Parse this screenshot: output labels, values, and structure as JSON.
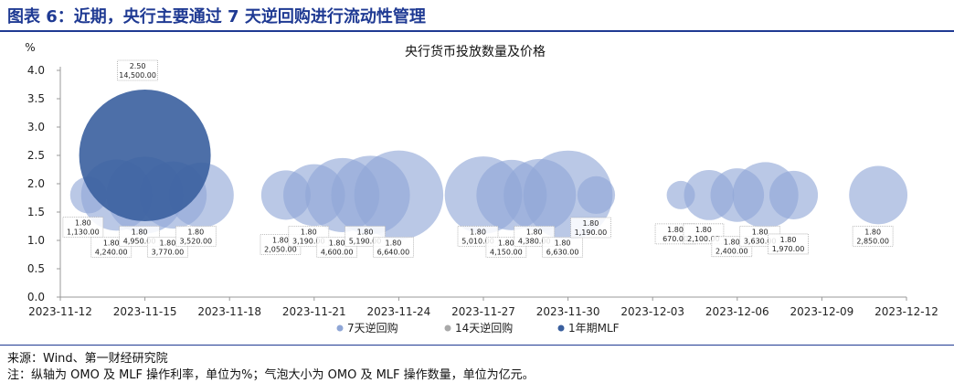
{
  "header": {
    "figure_title": "图表 6：近期，央行主要通过 7 天逆回购进行流动性管理"
  },
  "footer": {
    "source": "来源：Wind、第一财经研究院",
    "note": "注：纵轴为 OMO 及 MLF 操作利率，单位为%；气泡大小为 OMO 及 MLF 操作数量，单位为亿元。"
  },
  "colors": {
    "7d": "#8fa6d6",
    "14d": "#7f95c7",
    "mlf": "#3a5f9e",
    "axis": "#999999",
    "header": "#1f3a93"
  },
  "chart_data": {
    "type": "bubble",
    "title": "央行货币投放数量及价格",
    "y_unit_label": "%",
    "ylim": [
      0.0,
      4.0
    ],
    "y_ticks": [
      "0.0",
      "0.5",
      "1.0",
      "1.5",
      "2.0",
      "2.5",
      "3.0",
      "3.5",
      "4.0"
    ],
    "x_start": "2023-11-12",
    "x_end": "2023-12-12",
    "x_ticks": [
      "2023-11-12",
      "2023-11-15",
      "2023-11-18",
      "2023-11-21",
      "2023-11-24",
      "2023-11-27",
      "2023-11-30",
      "2023-12-03",
      "2023-12-06",
      "2023-12-09",
      "2023-12-12"
    ],
    "grid": false,
    "legend_position": "bottom",
    "series": [
      {
        "name": "7天逆回购",
        "color_key": "7d",
        "points": [
          {
            "date": "2023-11-13",
            "y": 1.8,
            "size": 1130,
            "label": "1.80\n1,130.00"
          },
          {
            "date": "2023-11-14",
            "y": 1.8,
            "size": 4240,
            "label": "1.80\n4,240.00"
          },
          {
            "date": "2023-11-15",
            "y": 1.8,
            "size": 4950,
            "label": "1.80\n4,950.00"
          },
          {
            "date": "2023-11-16",
            "y": 1.8,
            "size": 3770,
            "label": "1.80\n3,770.00"
          },
          {
            "date": "2023-11-17",
            "y": 1.8,
            "size": 3520,
            "label": "1.80\n3,520.00"
          },
          {
            "date": "2023-11-20",
            "y": 1.8,
            "size": 2050,
            "label": "1.80\n2,050.00"
          },
          {
            "date": "2023-11-21",
            "y": 1.8,
            "size": 3190,
            "label": "1.80\n3,190.00"
          },
          {
            "date": "2023-11-22",
            "y": 1.8,
            "size": 4600,
            "label": "1.80\n4,600.00"
          },
          {
            "date": "2023-11-23",
            "y": 1.8,
            "size": 5190,
            "label": "1.80\n5,190.00"
          },
          {
            "date": "2023-11-24",
            "y": 1.8,
            "size": 6640,
            "label": "1.80\n6,640.00"
          },
          {
            "date": "2023-11-27",
            "y": 1.8,
            "size": 5010,
            "label": "1.80\n5,010.00"
          },
          {
            "date": "2023-11-28",
            "y": 1.8,
            "size": 4150,
            "label": "1.80\n4,150.00"
          },
          {
            "date": "2023-11-29",
            "y": 1.8,
            "size": 4380,
            "label": "1.80\n4,380.00"
          },
          {
            "date": "2023-11-30",
            "y": 1.8,
            "size": 6630,
            "label": "1.80\n6,630.00"
          },
          {
            "date": "2023-12-01",
            "y": 1.8,
            "size": 1190,
            "label": "1.80\n1,190.00"
          },
          {
            "date": "2023-12-04",
            "y": 1.8,
            "size": 670,
            "label": "1.80\n670.00"
          },
          {
            "date": "2023-12-05",
            "y": 1.8,
            "size": 2100,
            "label": "1.80\n2,100.00"
          },
          {
            "date": "2023-12-06",
            "y": 1.8,
            "size": 2400,
            "label": "1.80\n2,400.00"
          },
          {
            "date": "2023-12-07",
            "y": 1.8,
            "size": 3630,
            "label": "1.80\n3,630.00"
          },
          {
            "date": "2023-12-08",
            "y": 1.8,
            "size": 1970,
            "label": "1.80\n1,970.00"
          },
          {
            "date": "2023-12-11",
            "y": 1.8,
            "size": 2850,
            "label": "1.80\n2,850.00"
          }
        ]
      },
      {
        "name": "14天逆回购",
        "color_key": "14d",
        "points": []
      },
      {
        "name": "1年期MLF",
        "color_key": "mlf",
        "points": [
          {
            "date": "2023-11-15",
            "y": 2.5,
            "size": 14500,
            "label": "2.50\n14,500.00"
          }
        ]
      }
    ]
  }
}
